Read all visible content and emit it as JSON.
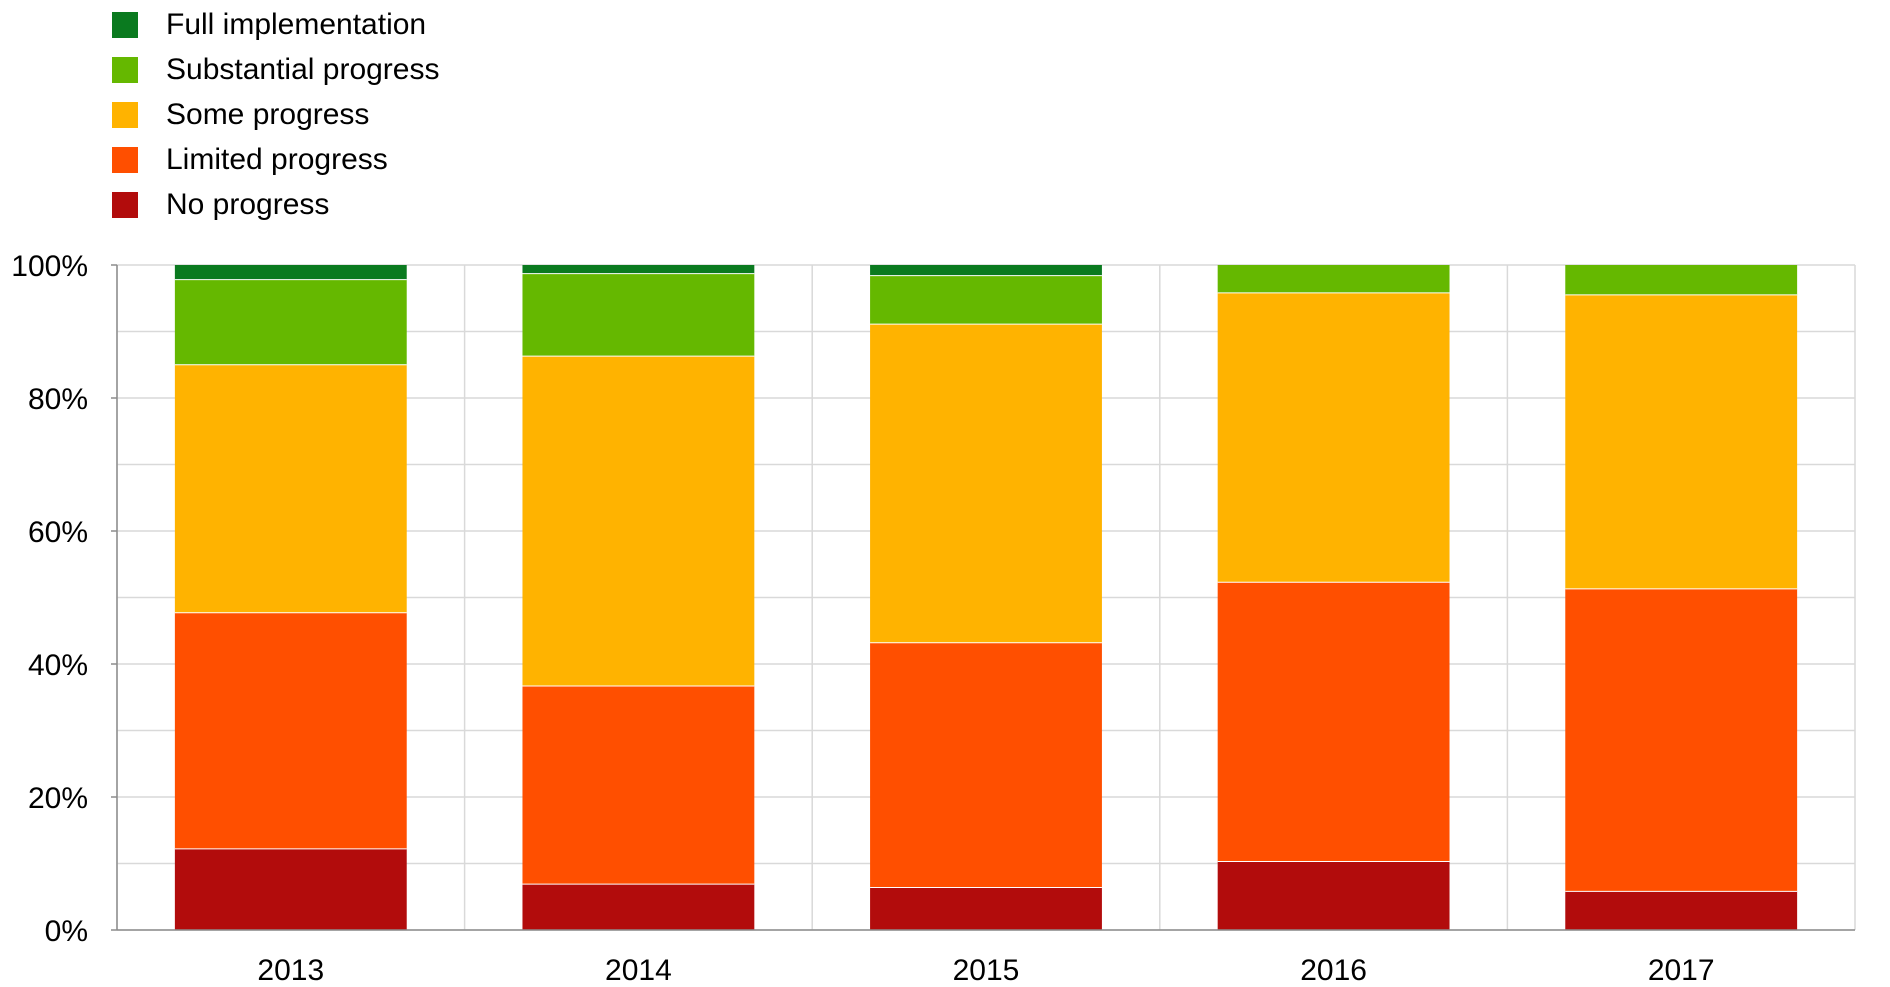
{
  "chart_data": {
    "type": "bar",
    "stacked": true,
    "categories": [
      "2013",
      "2014",
      "2015",
      "2016",
      "2017"
    ],
    "series": [
      {
        "name": "No progress",
        "color": "#b20c0c",
        "values": [
          12.2,
          6.9,
          6.4,
          10.3,
          5.8
        ]
      },
      {
        "name": "Limited progress",
        "color": "#ff4f00",
        "values": [
          35.5,
          29.8,
          36.8,
          42.0,
          45.5
        ]
      },
      {
        "name": "Some progress",
        "color": "#ffb300",
        "values": [
          37.3,
          49.6,
          47.9,
          43.5,
          44.2
        ]
      },
      {
        "name": "Substantial progress",
        "color": "#65b800",
        "values": [
          12.8,
          12.4,
          7.3,
          4.2,
          4.5
        ]
      },
      {
        "name": "Full implementation",
        "color": "#0a7a1f",
        "values": [
          2.2,
          1.3,
          1.6,
          0.0,
          0.0
        ]
      }
    ],
    "legend_order": [
      "Full implementation",
      "Substantial progress",
      "Some progress",
      "Limited progress",
      "No progress"
    ],
    "ylim": [
      0,
      100
    ],
    "yticks": [
      "0%",
      "20%",
      "40%",
      "60%",
      "80%",
      "100%"
    ],
    "ytick_values": [
      0,
      20,
      40,
      60,
      80,
      100
    ],
    "grid": true,
    "legend_position": "top-left",
    "title": "",
    "xlabel": "",
    "ylabel": ""
  }
}
